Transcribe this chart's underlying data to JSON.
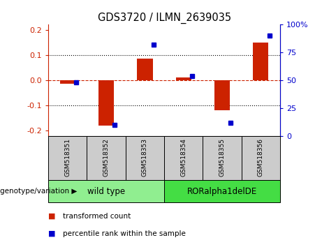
{
  "title": "GDS3720 / ILMN_2639035",
  "samples": [
    "GSM518351",
    "GSM518352",
    "GSM518353",
    "GSM518354",
    "GSM518355",
    "GSM518356"
  ],
  "transformed_count": [
    -0.015,
    -0.18,
    0.085,
    0.01,
    -0.12,
    0.15
  ],
  "percentile_rank": [
    48,
    10,
    82,
    54,
    12,
    90
  ],
  "genotype_groups": [
    {
      "label": "wild type",
      "start": 0,
      "end": 2,
      "color": "#90EE90"
    },
    {
      "label": "RORalpha1delDE",
      "start": 3,
      "end": 5,
      "color": "#44DD44"
    }
  ],
  "ylim_left": [
    -0.22,
    0.22
  ],
  "yticks_left": [
    -0.2,
    -0.1,
    0.0,
    0.1,
    0.2
  ],
  "yticks_right": [
    0,
    25,
    50,
    75,
    100
  ],
  "bar_color": "#CC2200",
  "dot_color": "#0000CC",
  "zero_line_color": "#CC2200",
  "grid_color": "#000000",
  "legend_red_label": "transformed count",
  "legend_blue_label": "percentile rank within the sample",
  "genotype_label": "genotype/variation",
  "sample_bg_color": "#CCCCCC",
  "bar_width": 0.4
}
